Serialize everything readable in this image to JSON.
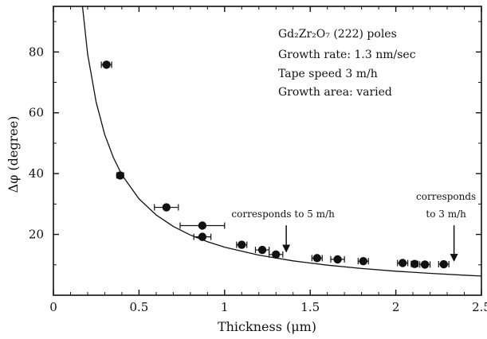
{
  "chart_data": {
    "type": "scatter",
    "title": "",
    "xlabel": "Thickness (μm)",
    "ylabel": "Δφ (degree)",
    "xlim": [
      0,
      2.5
    ],
    "ylim": [
      0,
      95
    ],
    "xticks": [
      0,
      0.5,
      1,
      1.5,
      2,
      2.5
    ],
    "xtick_labels": [
      "0",
      "0.5",
      "1",
      "1.5",
      "2",
      "2.5"
    ],
    "yticks": [
      20,
      40,
      60,
      80
    ],
    "ytick_labels": [
      "20",
      "40",
      "60",
      "80"
    ],
    "grid": false,
    "legend": "none",
    "annotations": [
      "Gd₂Zr₂O₇ (222) poles",
      "Growth rate: 1.3 nm/sec",
      "Tape speed 3 m/h",
      "Growth area: varied"
    ],
    "arrows": [
      {
        "lines": [
          "corresponds to 5 m/h"
        ],
        "x": 1.36,
        "y_from": 23,
        "y_to": 14
      },
      {
        "lines": [
          "corresponds",
          "to 3 m/h"
        ],
        "x": 2.34,
        "y_from": 23,
        "y_to": 11
      }
    ],
    "series": [
      {
        "marker": "circle",
        "x": [
          0.31,
          0.39,
          0.66,
          0.87,
          0.87,
          1.1,
          1.22,
          1.3,
          1.54,
          1.66,
          1.81,
          2.04,
          2.11,
          2.17,
          2.28
        ],
        "y": [
          75.8,
          39.4,
          28.9,
          22.9,
          19.2,
          16.6,
          14.9,
          13.4,
          12.2,
          11.8,
          11.2,
          10.6,
          10.3,
          10.1,
          10.2
        ],
        "xerr": [
          0.03,
          0.02,
          0.07,
          0.13,
          0.05,
          0.03,
          0.04,
          0.04,
          0.03,
          0.04,
          0.03,
          0.03,
          0.02,
          0.03,
          0.03
        ]
      },
      {
        "type": "line",
        "curve": "fit",
        "x": [
          0.17,
          0.2,
          0.25,
          0.3,
          0.35,
          0.4,
          0.5,
          0.6,
          0.7,
          0.8,
          0.9,
          1.0,
          1.2,
          1.4,
          1.6,
          1.8,
          2.0,
          2.2,
          2.4,
          2.5
        ],
        "y": [
          95,
          79.2,
          63.4,
          52.8,
          45.3,
          39.6,
          31.7,
          26.4,
          22.6,
          19.8,
          17.6,
          15.8,
          13.2,
          11.3,
          9.9,
          8.8,
          7.9,
          7.2,
          6.6,
          6.3
        ]
      }
    ]
  }
}
